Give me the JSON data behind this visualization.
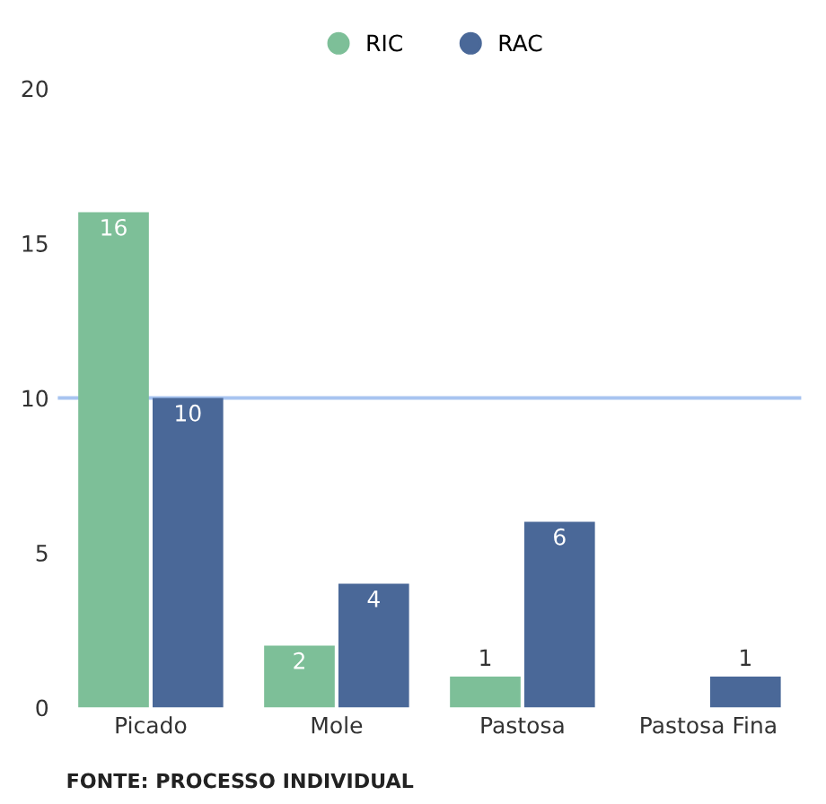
{
  "chart_data": {
    "type": "bar",
    "categories": [
      "Picado",
      "Mole",
      "Pastosa",
      "Pastosa Fina"
    ],
    "series": [
      {
        "name": "RIC",
        "color": "#7dbf98",
        "values": [
          16,
          2,
          1,
          0
        ],
        "value_labels": [
          "16",
          "2",
          "1",
          null
        ]
      },
      {
        "name": "RAC",
        "color": "#4a6898",
        "values": [
          10,
          4,
          6,
          1
        ],
        "value_labels": [
          "10",
          "4",
          "6",
          "1"
        ]
      }
    ],
    "ylim": [
      0,
      20
    ],
    "yticks": [
      0,
      5,
      10,
      15,
      20
    ],
    "grid": false,
    "legend": "top",
    "ref_lines": [
      {
        "axis": "y",
        "value": 10,
        "color": "#a8c4f0"
      }
    ],
    "annotations": [
      "FONTE: PROCESSO INDIVIDUAL"
    ]
  }
}
